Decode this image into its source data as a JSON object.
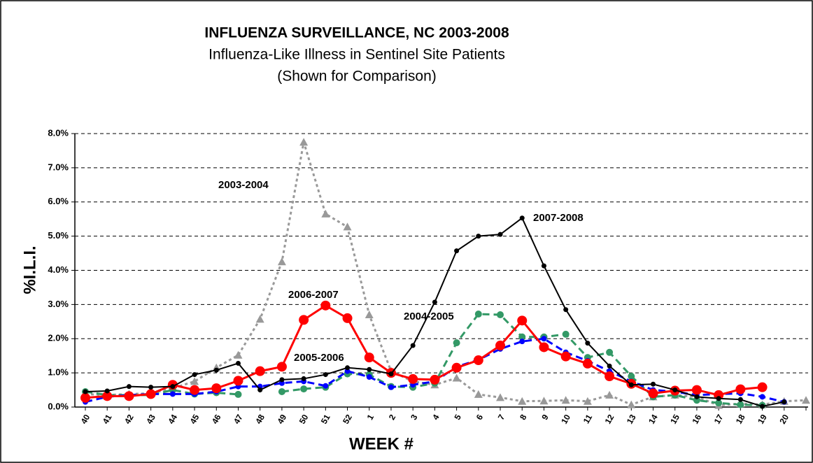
{
  "chart_data": {
    "type": "line",
    "title": "INFLUENZA SURVEILLANCE, NC 2003-2008",
    "subtitle": [
      "Influenza-Like Illness in Sentinel Site Patients",
      "(Shown for Comparison)"
    ],
    "x_label": "WEEK #",
    "y_label": "%I.L.I.",
    "categories": [
      "40",
      "41",
      "42",
      "43",
      "44",
      "45",
      "46",
      "47",
      "48",
      "49",
      "50",
      "51",
      "52",
      "1",
      "2",
      "3",
      "4",
      "5",
      "6",
      "7",
      "8",
      "9",
      "10",
      "11",
      "12",
      "13",
      "14",
      "15",
      "16",
      "17",
      "18",
      "19",
      "20",
      null
    ],
    "ylim": [
      0,
      8
    ],
    "yticks": [
      {
        "value": 0,
        "label": "0.0%"
      },
      {
        "value": 1,
        "label": "1.0%"
      },
      {
        "value": 2,
        "label": "2.0%"
      },
      {
        "value": 3,
        "label": "3.0%"
      },
      {
        "value": 4,
        "label": "4.0%"
      },
      {
        "value": 5,
        "label": "5.0%"
      },
      {
        "value": 6,
        "label": "6.0%"
      },
      {
        "value": 7,
        "label": "7.0%"
      },
      {
        "value": 8,
        "label": "8.0%"
      }
    ],
    "grid": true,
    "series": [
      {
        "name": "2003-2004",
        "color": "#999999",
        "line_style": "dotted",
        "marker": "triangle",
        "values": [
          0.38,
          0.35,
          0.38,
          0.4,
          0.55,
          0.75,
          1.15,
          1.52,
          2.57,
          4.25,
          7.75,
          5.65,
          5.27,
          2.7,
          1.05,
          0.75,
          0.65,
          0.85,
          0.37,
          0.28,
          0.17,
          0.18,
          0.2,
          0.17,
          0.35,
          0.07,
          0.3,
          0.35,
          0.3,
          0.05,
          0.1,
          0.07,
          0.17,
          0.2
        ]
      },
      {
        "name": "2004-2005",
        "color": "#339966",
        "line_style": "dashed",
        "marker": "circle",
        "values": [
          0.45,
          0.35,
          0.35,
          0.35,
          0.5,
          0.38,
          0.42,
          0.37,
          null,
          0.45,
          0.53,
          0.58,
          0.97,
          0.95,
          0.6,
          0.58,
          0.7,
          1.88,
          2.72,
          2.7,
          2.05,
          2.05,
          2.13,
          1.45,
          1.6,
          0.9,
          0.3,
          0.35,
          0.2,
          0.12,
          0.07,
          0.05,
          null,
          null
        ]
      },
      {
        "name": "2005-2006",
        "color": "#0000ff",
        "line_style": "dashed",
        "marker": "circle",
        "values": [
          0.15,
          0.3,
          0.35,
          0.38,
          0.38,
          0.38,
          0.45,
          0.6,
          0.6,
          0.7,
          0.75,
          0.62,
          1.05,
          0.88,
          0.58,
          0.65,
          0.75,
          1.18,
          1.38,
          1.7,
          1.92,
          2.0,
          1.6,
          1.35,
          1.05,
          0.75,
          0.5,
          0.45,
          0.35,
          0.38,
          0.4,
          0.3,
          0.15,
          null
        ]
      },
      {
        "name": "2006-2007",
        "color": "#ff0000",
        "line_style": "solid",
        "marker": "circle",
        "values": [
          0.27,
          0.32,
          0.32,
          0.38,
          0.65,
          0.5,
          0.55,
          0.77,
          1.05,
          1.18,
          2.55,
          2.97,
          2.6,
          1.45,
          1.0,
          0.82,
          0.8,
          1.15,
          1.37,
          1.8,
          2.53,
          1.75,
          1.48,
          1.27,
          0.9,
          0.68,
          0.4,
          0.48,
          0.5,
          0.35,
          0.52,
          0.58,
          null,
          null
        ]
      },
      {
        "name": "2007-2008",
        "color": "#000000",
        "line_style": "solid",
        "marker": "circle",
        "values": [
          0.45,
          0.47,
          0.6,
          0.58,
          0.6,
          0.95,
          1.08,
          1.28,
          0.5,
          0.8,
          0.83,
          0.95,
          1.15,
          1.1,
          0.97,
          1.8,
          3.07,
          4.57,
          5.0,
          5.05,
          5.53,
          4.13,
          2.85,
          1.87,
          1.2,
          0.65,
          0.67,
          0.5,
          0.3,
          0.25,
          0.22,
          0.02,
          0.15,
          null
        ]
      }
    ]
  }
}
